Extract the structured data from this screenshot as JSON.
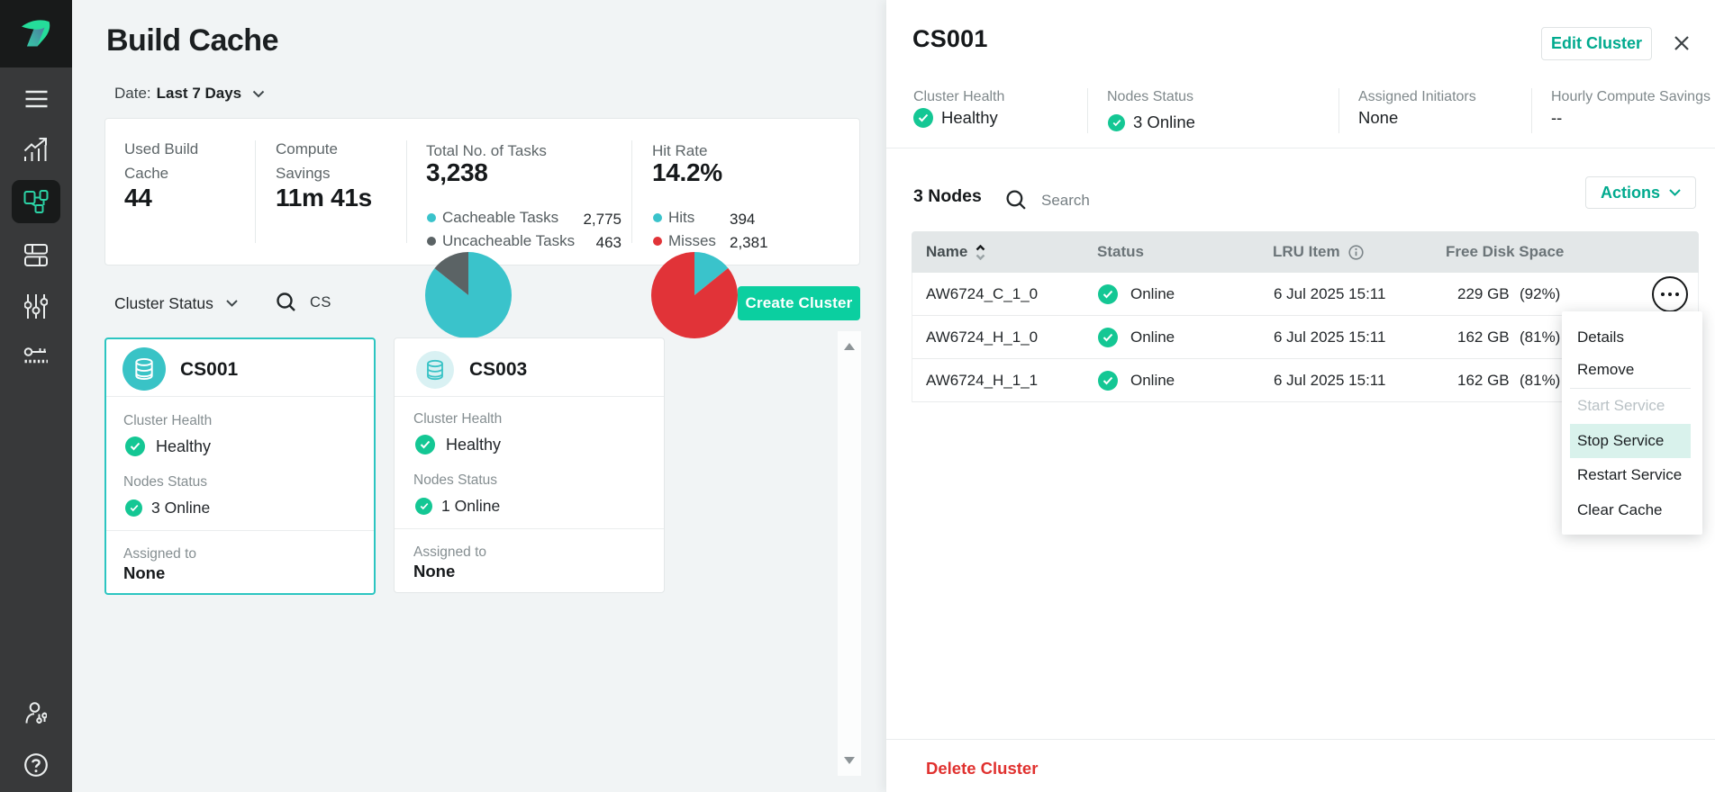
{
  "app": {
    "name": "Incredibuild",
    "accent_teal": "#00aa8e",
    "accent_green": "#0bcfa0",
    "accent_cyan": "#3ac3c9"
  },
  "icons": {
    "help": "question-mark-circle",
    "logo": "incredibuild-mark"
  },
  "sidebar": {
    "items": [
      {
        "icon": "menu-icon"
      },
      {
        "icon": "analytics-icon"
      },
      {
        "icon": "build-cache-icon",
        "active": true
      },
      {
        "icon": "layout-icon"
      },
      {
        "icon": "sliders-icon"
      },
      {
        "icon": "key-icon"
      },
      {
        "icon": "user-permissions-icon"
      },
      {
        "icon": "help-icon"
      }
    ]
  },
  "main": {
    "title": "Build Cache",
    "date_filter": {
      "label": "Date:",
      "value": "Last 7 Days"
    },
    "stats": {
      "used_build_cache": {
        "label_line1": "Used Build",
        "label_line2": "Cache",
        "value": "44"
      },
      "compute_savings": {
        "label_line1": "Compute",
        "label_line2": "Savings",
        "value": "11m 41s"
      },
      "total_tasks": {
        "label": "Total No. of Tasks",
        "value": "3,238",
        "legend": [
          {
            "label": "Cacheable Tasks",
            "value": "2,775",
            "color": "#3ac3cb"
          },
          {
            "label": "Uncacheable Tasks",
            "value": "463",
            "color": "#5b6365"
          }
        ]
      },
      "hit_rate": {
        "label": "Hit Rate",
        "value": "14.2%",
        "legend": [
          {
            "label": "Hits",
            "value": "394",
            "color": "#3ac3cb"
          },
          {
            "label": "Misses",
            "value": "2,381",
            "color": "#e13338"
          }
        ]
      }
    },
    "filters": {
      "cluster_status_label": "Cluster Status",
      "search_value": "CS"
    },
    "create_cluster_label": "Create Cluster",
    "clusters": [
      {
        "name": "CS001",
        "health_label": "Cluster Health",
        "health": "Healthy",
        "nodes_label": "Nodes Status",
        "nodes": "3 Online",
        "assigned_label": "Assigned to",
        "assigned": "None",
        "selected": true
      },
      {
        "name": "CS003",
        "health_label": "Cluster Health",
        "health": "Healthy",
        "nodes_label": "Nodes Status",
        "nodes": "1 Online",
        "assigned_label": "Assigned to",
        "assigned": "None",
        "selected": false
      }
    ]
  },
  "panel": {
    "title": "CS001",
    "edit_button": "Edit Cluster",
    "stats": [
      {
        "label": "Cluster Health",
        "value": "Healthy",
        "check": true
      },
      {
        "label": "Nodes Status",
        "value": "3 Online",
        "check": true
      },
      {
        "label": "Assigned Initiators",
        "value": "None",
        "check": false
      },
      {
        "label": "Hourly Compute Savings",
        "value": "--",
        "check": false
      }
    ],
    "nodes_count": "3 Nodes",
    "search_placeholder": "Search",
    "actions_label": "Actions",
    "table": {
      "columns": [
        "Name",
        "Status",
        "LRU Item",
        "Free Disk Space"
      ],
      "rows": [
        {
          "name": "AW6724_C_1_0",
          "status": "Online",
          "lru": "6 Jul 2025 15:11",
          "disk": "229 GB",
          "disk_pct": "(92%)"
        },
        {
          "name": "AW6724_H_1_0",
          "status": "Online",
          "lru": "6 Jul 2025 15:11",
          "disk": "162 GB",
          "disk_pct": "(81%)"
        },
        {
          "name": "AW6724_H_1_1",
          "status": "Online",
          "lru": "6 Jul 2025 15:11",
          "disk": "162 GB",
          "disk_pct": "(81%)"
        }
      ]
    },
    "menu": {
      "items": [
        {
          "label": "Details",
          "state": "normal"
        },
        {
          "label": "Remove",
          "state": "normal"
        },
        {
          "label": "Start Service",
          "state": "disabled"
        },
        {
          "label": "Stop Service",
          "state": "highlighted"
        },
        {
          "label": "Restart Service",
          "state": "normal"
        },
        {
          "label": "Clear Cache",
          "state": "normal"
        }
      ]
    },
    "delete_button": "Delete Cluster"
  },
  "chart_data": [
    {
      "type": "pie",
      "title": "Total No. of Tasks",
      "labels": [
        "Cacheable Tasks",
        "Uncacheable Tasks"
      ],
      "values": [
        2775,
        463
      ],
      "colors": [
        "#3ac3cb",
        "#5b6365"
      ],
      "total": 3238
    },
    {
      "type": "pie",
      "title": "Hit Rate",
      "labels": [
        "Hits",
        "Misses"
      ],
      "values": [
        394,
        2381
      ],
      "colors": [
        "#3ac3cb",
        "#e13338"
      ],
      "hit_rate": "14.2%"
    }
  ]
}
